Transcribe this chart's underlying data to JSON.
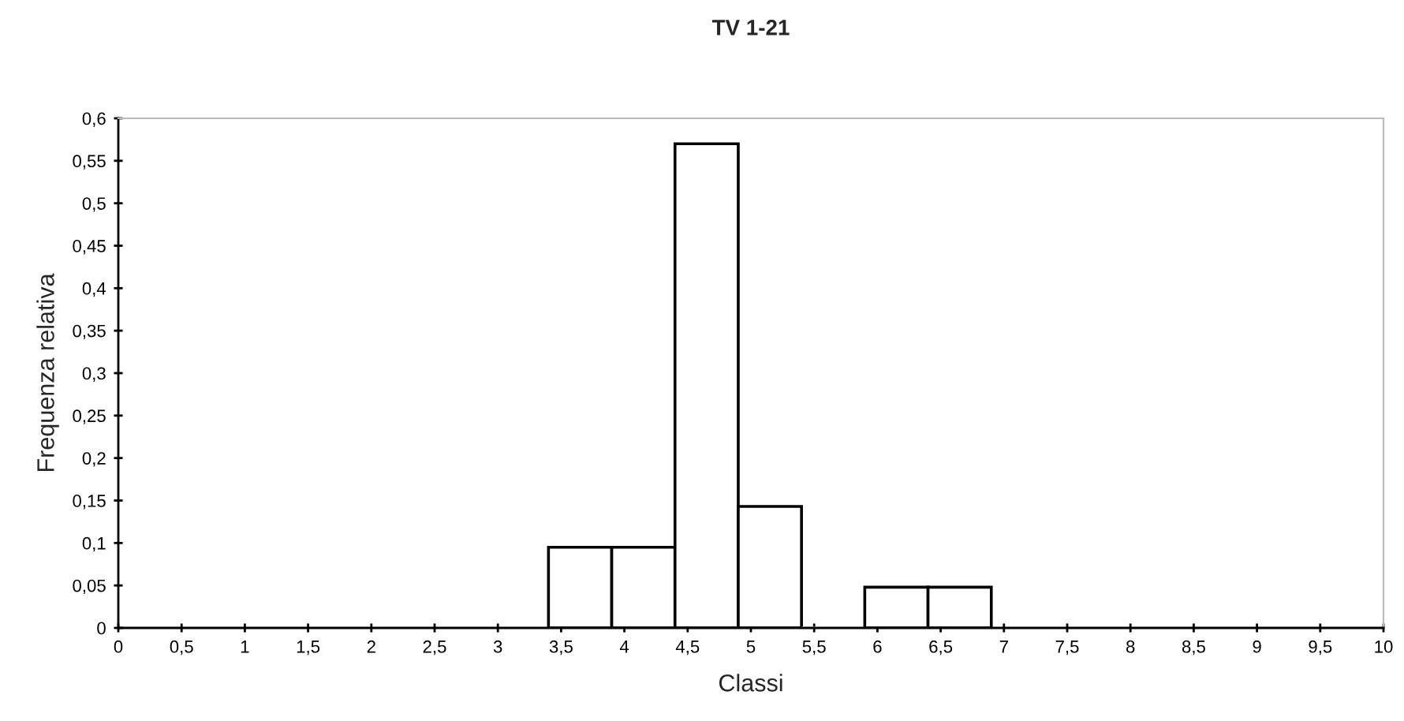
{
  "chart_data": {
    "type": "histogram",
    "title": "TV 1-21",
    "xlabel": "Classi",
    "ylabel": "Frequenza relativa",
    "bins": [
      3.4,
      3.9,
      4.4,
      4.9,
      5.4,
      5.9,
      6.4,
      6.9
    ],
    "values": [
      0.095,
      0.095,
      0.57,
      0.143,
      0,
      0.048,
      0.048
    ],
    "color": "#ffffff",
    "xlim": [
      0,
      10
    ],
    "xticks": [
      0,
      {
        "value": 0.5,
        "label": "0,5"
      },
      1,
      {
        "value": 1.5,
        "label": "1,5"
      },
      2,
      {
        "value": 2.5,
        "label": "2,5"
      },
      3,
      {
        "value": 3.5,
        "label": "3,5"
      },
      4,
      {
        "value": 4.5,
        "label": "4,5"
      },
      5,
      {
        "value": 5.5,
        "label": "5,5"
      },
      6,
      {
        "value": 6.5,
        "label": "6,5"
      },
      7,
      {
        "value": 7.5,
        "label": "7,5"
      },
      8,
      {
        "value": 8.5,
        "label": "8,5"
      },
      9,
      {
        "value": 9.5,
        "label": "9,5"
      },
      10
    ],
    "ylim": [
      0,
      0.6
    ],
    "yticks": [
      0,
      {
        "value": 0.05,
        "label": "0,05"
      },
      {
        "value": 0.1,
        "label": "0,1"
      },
      {
        "value": 0.15,
        "label": "0,15"
      },
      {
        "value": 0.2,
        "label": "0,2"
      },
      {
        "value": 0.25,
        "label": "0,25"
      },
      {
        "value": 0.3,
        "label": "0,3"
      },
      {
        "value": 0.35,
        "label": "0,35"
      },
      {
        "value": 0.4,
        "label": "0,4"
      },
      {
        "value": 0.45,
        "label": "0,45"
      },
      {
        "value": 0.5,
        "label": "0,5"
      },
      {
        "value": 0.55,
        "label": "0,55"
      },
      {
        "value": 0.6,
        "label": "0,6"
      }
    ],
    "grid": false
  }
}
